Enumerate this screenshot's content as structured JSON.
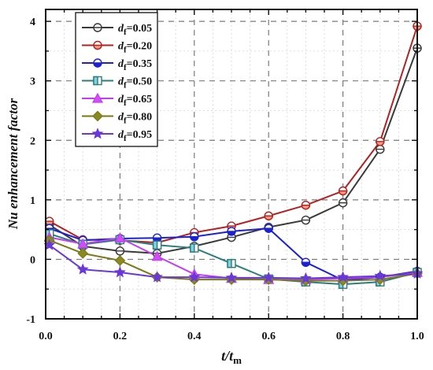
{
  "chart_data": {
    "type": "line",
    "title": "",
    "xlabel": {
      "main": "t/t",
      "sub": "m"
    },
    "ylabel": "Nu enhancement factor",
    "xlim": [
      0,
      1
    ],
    "ylim": [
      -1,
      4.2
    ],
    "x_ticks": [
      0,
      0.2,
      0.4,
      0.6,
      0.8,
      1.0
    ],
    "x_tick_labels": [
      "0.0",
      "0.2",
      "0.4",
      "0.6",
      "0.8",
      "1.0"
    ],
    "y_ticks": [
      -1,
      0,
      1,
      2,
      3,
      4
    ],
    "y_tick_labels": [
      "-1",
      "0",
      "1",
      "2",
      "3",
      "4"
    ],
    "grid": true,
    "legend_position": "top-left",
    "series": [
      {
        "name": "d_f=0.05",
        "legend_label_main": "d",
        "legend_label_sub": "f",
        "legend_label_value": "=0.05",
        "color": "#3a3a3a",
        "marker": "half-circle",
        "fill": "#ffffff",
        "x": [
          0.01,
          0.1,
          0.2,
          0.3,
          0.4,
          0.5,
          0.6,
          0.7,
          0.8,
          0.9,
          1.0
        ],
        "y": [
          0.58,
          0.22,
          0.14,
          0.1,
          0.22,
          0.37,
          0.54,
          0.66,
          0.95,
          1.85,
          3.55
        ]
      },
      {
        "name": "d_f=0.20",
        "legend_label_main": "d",
        "legend_label_sub": "f",
        "legend_label_value": "=0.20",
        "color": "#b22222",
        "marker": "half-circle",
        "fill": "#f29b7d",
        "x": [
          0.01,
          0.1,
          0.2,
          0.3,
          0.4,
          0.5,
          0.6,
          0.7,
          0.8,
          0.9,
          1.0
        ],
        "y": [
          0.64,
          0.33,
          0.32,
          0.28,
          0.45,
          0.56,
          0.73,
          0.91,
          1.15,
          1.98,
          3.92
        ]
      },
      {
        "name": "d_f=0.35",
        "legend_label_main": "d",
        "legend_label_sub": "f",
        "legend_label_value": "=0.35",
        "color": "#1c22d1",
        "marker": "half-circle",
        "fill": "#1c22d1",
        "x": [
          0.01,
          0.1,
          0.2,
          0.3,
          0.4,
          0.5,
          0.6,
          0.7,
          0.8,
          0.9,
          1.0
        ],
        "y": [
          0.52,
          0.32,
          0.35,
          0.36,
          0.38,
          0.47,
          0.52,
          -0.05,
          -0.35,
          -0.3,
          -0.2
        ]
      },
      {
        "name": "d_f=0.50",
        "legend_label_main": "d",
        "legend_label_sub": "f",
        "legend_label_value": "=0.50",
        "color": "#2b7d7b",
        "marker": "half-square",
        "fill": "#7fd1e2",
        "x": [
          0.01,
          0.1,
          0.2,
          0.3,
          0.4,
          0.5,
          0.6,
          0.7,
          0.8,
          0.9,
          1.0
        ],
        "y": [
          0.43,
          0.25,
          0.33,
          0.24,
          0.19,
          -0.07,
          -0.33,
          -0.38,
          -0.42,
          -0.38,
          -0.22
        ]
      },
      {
        "name": "d_f=0.65",
        "legend_label_main": "d",
        "legend_label_sub": "f",
        "legend_label_value": "=0.65",
        "color": "#c33ef0",
        "marker": "triangle",
        "fill": "#d14df7",
        "x": [
          0.01,
          0.1,
          0.2,
          0.3,
          0.4,
          0.5,
          0.6,
          0.7,
          0.8,
          0.9,
          1.0
        ],
        "y": [
          0.37,
          0.26,
          0.36,
          0.05,
          -0.25,
          -0.32,
          -0.34,
          -0.34,
          -0.32,
          -0.3,
          -0.22
        ]
      },
      {
        "name": "d_f=0.80",
        "legend_label_main": "d",
        "legend_label_sub": "f",
        "legend_label_value": "=0.80",
        "color": "#7a7a17",
        "marker": "diamond",
        "fill": "#8a8a22",
        "x": [
          0.01,
          0.1,
          0.2,
          0.3,
          0.4,
          0.5,
          0.6,
          0.7,
          0.8,
          0.9,
          1.0
        ],
        "y": [
          0.32,
          0.1,
          -0.02,
          -0.3,
          -0.34,
          -0.34,
          -0.34,
          -0.36,
          -0.36,
          -0.34,
          -0.24
        ]
      },
      {
        "name": "d_f=0.95",
        "legend_label_main": "d",
        "legend_label_sub": "f",
        "legend_label_value": "=0.95",
        "color": "#6a38d8",
        "marker": "star",
        "fill": "#6a38d8",
        "x": [
          0.01,
          0.1,
          0.2,
          0.3,
          0.4,
          0.5,
          0.6,
          0.7,
          0.8,
          0.9,
          1.0
        ],
        "y": [
          0.24,
          -0.17,
          -0.22,
          -0.3,
          -0.3,
          -0.31,
          -0.31,
          -0.32,
          -0.3,
          -0.28,
          -0.24
        ]
      }
    ]
  }
}
